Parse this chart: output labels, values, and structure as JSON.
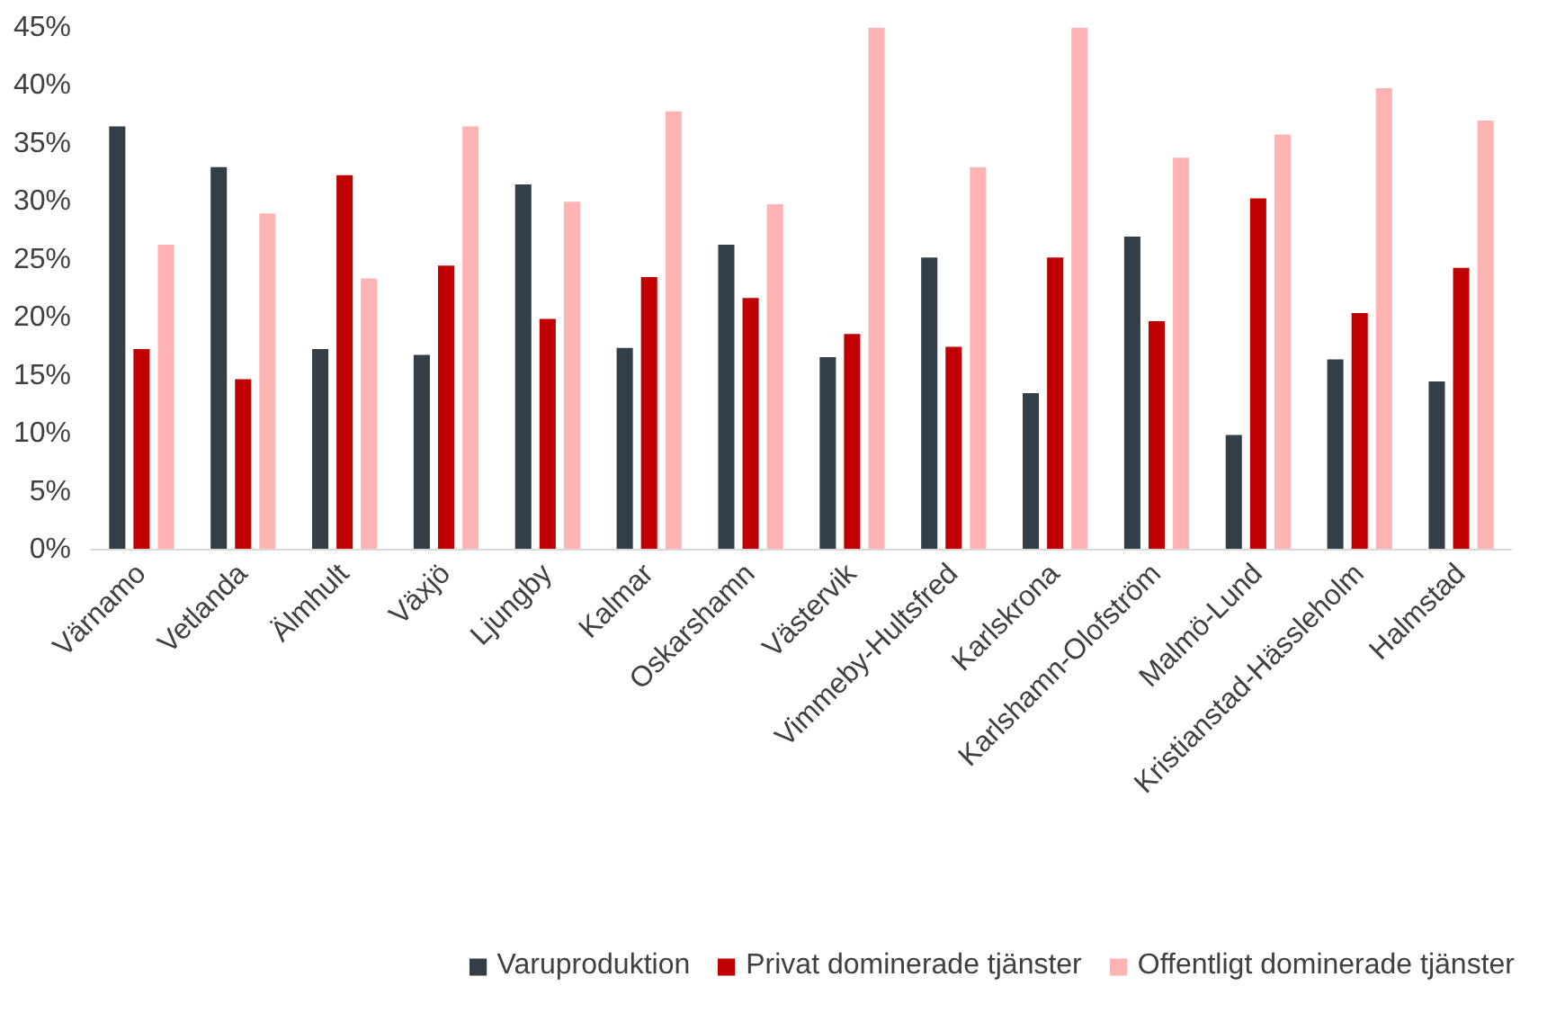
{
  "chart_data": {
    "type": "bar",
    "categories": [
      "Värnamo",
      "Vetlanda",
      "Älmhult",
      "Växjö",
      "Ljungby",
      "Kalmar",
      "Oskarshamn",
      "Västervik",
      "Vimmeby-Hultsfred",
      "Karlskrona",
      "Karlshamn-Olofström",
      "Malmö-Lund",
      "Kristianstad-Hässleholm",
      "Halmstad"
    ],
    "series": [
      {
        "name": "Varuproduktion",
        "color": "#333f48",
        "values": [
          36.5,
          33.0,
          17.3,
          16.8,
          31.5,
          17.4,
          26.3,
          16.6,
          25.2,
          13.5,
          27.0,
          9.9,
          16.4,
          14.5
        ]
      },
      {
        "name": "Privat dominerade tjänster",
        "color": "#c00000",
        "values": [
          17.3,
          14.7,
          32.3,
          24.5,
          19.9,
          23.5,
          21.7,
          18.6,
          17.5,
          25.2,
          19.7,
          30.3,
          20.4,
          24.3
        ]
      },
      {
        "name": "Offentligt dominerade tjänster",
        "color": "#ffb3b3",
        "values": [
          26.3,
          29.0,
          23.4,
          36.5,
          30.0,
          37.8,
          29.8,
          45.0,
          33.0,
          45.0,
          33.8,
          35.8,
          39.8,
          37.0
        ]
      }
    ],
    "ylim": [
      0,
      45
    ],
    "yticks": [
      {
        "value": 0,
        "label": "0%"
      },
      {
        "value": 5,
        "label": "5%"
      },
      {
        "value": 10,
        "label": "10%"
      },
      {
        "value": 15,
        "label": "15%"
      },
      {
        "value": 20,
        "label": "20%"
      },
      {
        "value": 25,
        "label": "25%"
      },
      {
        "value": 30,
        "label": "30%"
      },
      {
        "value": 35,
        "label": "35%"
      },
      {
        "value": 40,
        "label": "40%"
      },
      {
        "value": 45,
        "label": "45%"
      }
    ],
    "grid": false,
    "legend": "bottom"
  }
}
